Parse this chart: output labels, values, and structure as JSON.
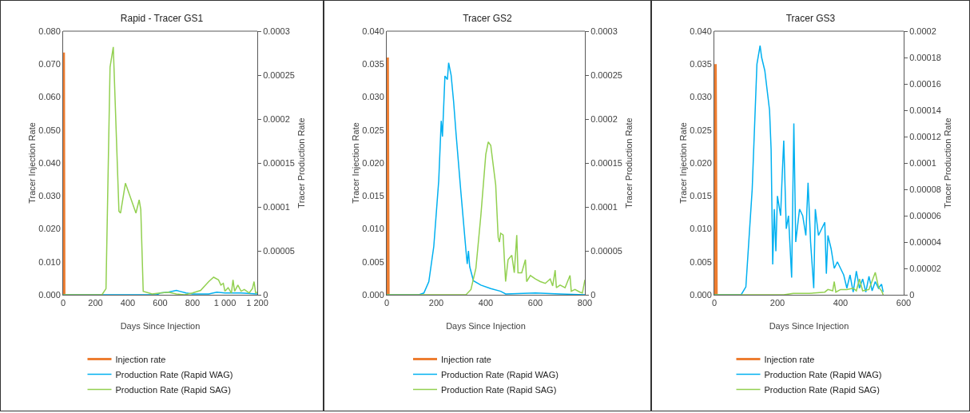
{
  "chart_data": [
    {
      "type": "line",
      "title": "Rapid - Tracer GS1",
      "xlabel": "Days Since Injection",
      "ylabel": "Tracer Injection Rate",
      "y2label": "Tracer Production Rate",
      "legend": "bottom",
      "grid": false,
      "marker": "none",
      "line_style": "solid",
      "xlim": [
        0,
        1200
      ],
      "xticks": [
        0,
        200,
        400,
        600,
        800,
        {
          "value": 1000,
          "label": "1 000"
        },
        {
          "value": 1200,
          "label": "1 200"
        }
      ],
      "ylim": [
        0,
        0.08
      ],
      "yticks": [
        {
          "value": 0,
          "label": "0.000"
        },
        {
          "value": 0.01,
          "label": "0.010"
        },
        {
          "value": 0.02,
          "label": "0.020"
        },
        {
          "value": 0.03,
          "label": "0.030"
        },
        {
          "value": 0.04,
          "label": "0.040"
        },
        {
          "value": 0.05,
          "label": "0.050"
        },
        {
          "value": 0.06,
          "label": "0.060"
        },
        {
          "value": 0.07,
          "label": "0.070"
        },
        {
          "value": 0.08,
          "label": "0.080"
        }
      ],
      "y2lim": [
        0,
        0.0003
      ],
      "y2ticks": [
        0,
        {
          "value": 5e-05,
          "label": "0.00005"
        },
        0.0001,
        0.00015,
        0.0002,
        0.00025,
        0.0003
      ],
      "series": [
        {
          "name": "Injection rate",
          "color": "#ed7d31",
          "axis": "y",
          "x": [
            1,
            4,
            7
          ],
          "values": [
            0,
            0.0735,
            0
          ]
        },
        {
          "name": "Production Rate (Rapid WAG)",
          "color": "#00b0f0",
          "axis": "y2",
          "x": [
            0,
            580,
            600,
            650,
            700,
            720,
            760,
            800,
            900,
            950,
            1000,
            1100,
            1200
          ],
          "values": [
            0,
            0,
            2e-06,
            3e-06,
            5e-06,
            4e-06,
            2e-06,
            1e-06,
            1e-06,
            3e-06,
            2e-06,
            2e-06,
            1e-06
          ]
        },
        {
          "name": "Production Rate (Rapid SAG)",
          "color": "#92d050",
          "axis": "y2",
          "x": [
            0,
            240,
            265,
            290,
            310,
            345,
            355,
            385,
            450,
            470,
            480,
            495,
            550,
            600,
            650,
            700,
            750,
            800,
            850,
            900,
            930,
            960,
            975,
            990,
            1000,
            1020,
            1040,
            1050,
            1060,
            1080,
            1100,
            1120,
            1150,
            1170,
            1180,
            1190,
            1200
          ],
          "values": [
            0,
            0,
            7e-06,
            0.000259,
            0.000282,
            9.5e-05,
            9.3e-05,
            0.000127,
            9.3e-05,
            0.000108,
            9.7e-05,
            4e-06,
            1e-06,
            2e-06,
            3e-06,
            1e-06,
            0,
            2e-06,
            5e-06,
            1.5e-05,
            2e-05,
            1.7e-05,
            1.1e-05,
            1.3e-05,
            4e-06,
            8e-06,
            2e-06,
            1.7e-05,
            4e-06,
            1.1e-05,
            4e-06,
            6e-06,
            2e-06,
            7e-06,
            1.5e-05,
            2e-06,
            3e-06
          ]
        }
      ]
    },
    {
      "type": "line",
      "title": "Tracer GS2",
      "xlabel": "Days Since Injection",
      "ylabel": "Tracer Injection Rate",
      "y2label": "Tracer Production Rate",
      "legend": "bottom",
      "grid": false,
      "marker": "none",
      "line_style": "solid",
      "xlim": [
        0,
        800
      ],
      "xticks": [
        0,
        200,
        400,
        600,
        800
      ],
      "ylim": [
        0,
        0.04
      ],
      "yticks": [
        {
          "value": 0,
          "label": "0.000"
        },
        {
          "value": 0.005,
          "label": "0.005"
        },
        {
          "value": 0.01,
          "label": "0.010"
        },
        {
          "value": 0.015,
          "label": "0.015"
        },
        {
          "value": 0.02,
          "label": "0.020"
        },
        {
          "value": 0.025,
          "label": "0.025"
        },
        {
          "value": 0.03,
          "label": "0.030"
        },
        {
          "value": 0.035,
          "label": "0.035"
        },
        {
          "value": 0.04,
          "label": "0.040"
        }
      ],
      "y2lim": [
        0,
        0.0003
      ],
      "y2ticks": [
        0,
        {
          "value": 5e-05,
          "label": "0.00005"
        },
        0.0001,
        0.00015,
        0.0002,
        0.00025,
        0.0003
      ],
      "series": [
        {
          "name": "Injection rate",
          "color": "#ed7d31",
          "axis": "y",
          "x": [
            1,
            4,
            7
          ],
          "values": [
            0,
            0.036,
            0
          ]
        },
        {
          "name": "Production Rate (Rapid WAG)",
          "color": "#00b0f0",
          "axis": "y2",
          "x": [
            0,
            130,
            150,
            170,
            190,
            210,
            220,
            225,
            235,
            245,
            250,
            260,
            270,
            280,
            300,
            320,
            325,
            330,
            335,
            350,
            380,
            420,
            460,
            480,
            600,
            700,
            800
          ],
          "values": [
            0,
            0,
            2e-06,
            1.5e-05,
            5.5e-05,
            0.00013,
            0.000198,
            0.00018,
            0.000249,
            0.000245,
            0.000264,
            0.00025,
            0.00022,
            0.000183,
            0.000115,
            5e-05,
            3.5e-05,
            5e-05,
            3.2e-05,
            1.6e-05,
            1.1e-05,
            7e-06,
            4e-06,
            1e-06,
            2e-06,
            1e-06,
            0
          ]
        },
        {
          "name": "Production Rate (Rapid SAG)",
          "color": "#92d050",
          "axis": "y2",
          "x": [
            0,
            320,
            340,
            360,
            380,
            400,
            410,
            420,
            440,
            450,
            455,
            460,
            470,
            475,
            480,
            490,
            505,
            515,
            525,
            530,
            545,
            560,
            565,
            580,
            600,
            620,
            640,
            660,
            670,
            680,
            685,
            700,
            720,
            740,
            745,
            760,
            780,
            790,
            800
          ],
          "values": [
            0,
            0,
            6e-06,
            3e-05,
            9e-05,
            0.00016,
            0.000174,
            0.00017,
            0.000125,
            6.5e-05,
            6e-05,
            7e-05,
            6.8e-05,
            4e-05,
            1.5e-05,
            4e-05,
            4.5e-05,
            2.5e-05,
            6.8e-05,
            2.5e-05,
            2.5e-05,
            4e-05,
            1.5e-05,
            2.2e-05,
            1.8e-05,
            1.5e-05,
            1.3e-05,
            1.8e-05,
            1e-05,
            2.8e-05,
            8e-06,
            1.1e-05,
            8e-06,
            2.2e-05,
            4e-06,
            6e-06,
            3e-06,
            2e-06,
            1.7e-05
          ]
        }
      ]
    },
    {
      "type": "line",
      "title": "Tracer GS3",
      "xlabel": "Days Since Injection",
      "ylabel": "Tracer Injection Rate",
      "y2label": "Tracer Production Rate",
      "legend": "bottom",
      "grid": false,
      "marker": "none",
      "line_style": "solid",
      "xlim": [
        0,
        600
      ],
      "xticks": [
        0,
        200,
        400,
        600
      ],
      "ylim": [
        0,
        0.04
      ],
      "yticks": [
        {
          "value": 0,
          "label": "0.000"
        },
        {
          "value": 0.005,
          "label": "0.005"
        },
        {
          "value": 0.01,
          "label": "0.010"
        },
        {
          "value": 0.015,
          "label": "0.015"
        },
        {
          "value": 0.02,
          "label": "0.020"
        },
        {
          "value": 0.025,
          "label": "0.025"
        },
        {
          "value": 0.03,
          "label": "0.030"
        },
        {
          "value": 0.035,
          "label": "0.035"
        },
        {
          "value": 0.04,
          "label": "0.040"
        }
      ],
      "y2lim": [
        0,
        0.0002
      ],
      "y2ticks": [
        0,
        {
          "value": 2e-05,
          "label": "0.00002"
        },
        {
          "value": 4e-05,
          "label": "0.00004"
        },
        {
          "value": 6e-05,
          "label": "0.00006"
        },
        {
          "value": 8e-05,
          "label": "0.00008"
        },
        0.0001,
        0.00012,
        0.00014,
        0.00016,
        0.00018,
        0.0002
      ],
      "series": [
        {
          "name": "Injection rate",
          "color": "#ed7d31",
          "axis": "y",
          "x": [
            1,
            4,
            7
          ],
          "values": [
            0,
            0.035,
            0
          ]
        },
        {
          "name": "Production Rate (Rapid WAG)",
          "color": "#00b0f0",
          "axis": "y2",
          "x": [
            0,
            85,
            100,
            120,
            135,
            145,
            150,
            160,
            170,
            175,
            180,
            185,
            190,
            195,
            200,
            210,
            215,
            220,
            228,
            235,
            245,
            252,
            258,
            270,
            280,
            290,
            297,
            305,
            315,
            320,
            330,
            340,
            350,
            355,
            360,
            370,
            380,
            390,
            400,
            410,
            420,
            430,
            440,
            450,
            460,
            470,
            480,
            490,
            500,
            510,
            520,
            530,
            535
          ],
          "values": [
            0,
            0,
            6e-06,
            8e-05,
            0.000175,
            0.000189,
            0.00018,
            0.00017,
            0.00015,
            0.00014,
            0.00011,
            2.3e-05,
            6.5e-05,
            3.3e-05,
            7.5e-05,
            6e-05,
            9e-05,
            0.000117,
            5e-05,
            6e-05,
            1.3e-05,
            0.00013,
            4e-05,
            6.5e-05,
            6e-05,
            4.5e-05,
            8.5e-05,
            4e-05,
            5e-06,
            6.5e-05,
            4.5e-05,
            5e-05,
            5.5e-05,
            1.6e-05,
            4.5e-05,
            3.5e-05,
            2e-05,
            2.5e-05,
            2e-05,
            1.5e-05,
            5e-06,
            1.5e-05,
            2e-06,
            1.8e-05,
            5e-06,
            1.2e-05,
            2e-06,
            1.4e-05,
            3e-06,
            1e-05,
            5e-06,
            8e-06,
            2e-06
          ]
        },
        {
          "name": "Production Rate (Rapid SAG)",
          "color": "#92d050",
          "axis": "y2",
          "x": [
            0,
            220,
            250,
            300,
            350,
            360,
            375,
            380,
            385,
            400,
            420,
            440,
            450,
            460,
            470,
            490,
            510,
            520,
            530,
            535
          ],
          "values": [
            0,
            0,
            1e-06,
            1e-06,
            2e-06,
            4e-06,
            3e-06,
            1e-05,
            2e-06,
            4e-06,
            4e-06,
            5e-06,
            3e-06,
            1.2e-05,
            3e-06,
            4e-06,
            1.7e-05,
            6e-06,
            3e-06,
            0
          ]
        }
      ]
    }
  ]
}
